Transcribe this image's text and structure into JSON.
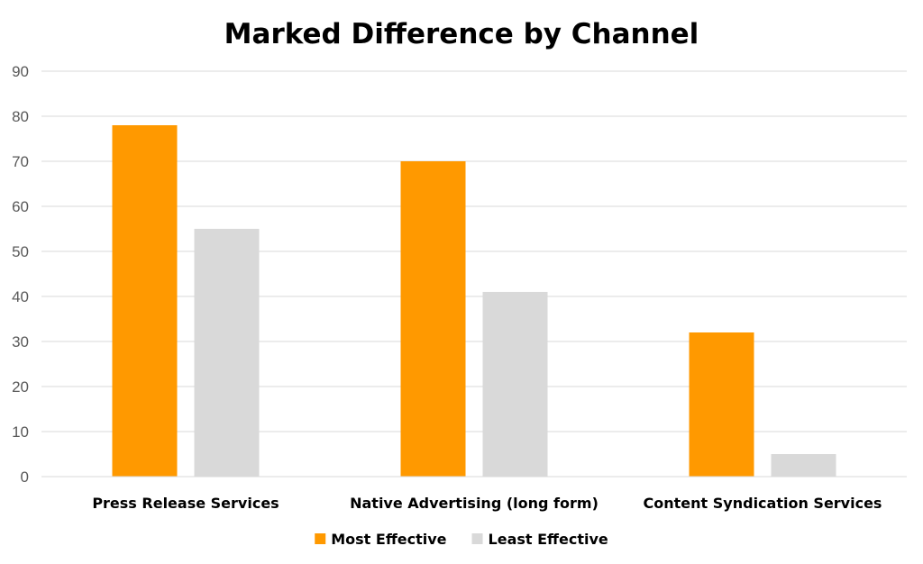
{
  "chart_data": {
    "type": "bar",
    "title": "Marked Difference by Channel",
    "xlabel": "",
    "ylabel": "",
    "ylim": [
      0,
      90
    ],
    "yticks": [
      0,
      10,
      20,
      30,
      40,
      50,
      60,
      70,
      80,
      90
    ],
    "grid": true,
    "legend_position": "bottom",
    "categories": [
      "Press Release Services",
      "Native Advertising (long form)",
      "Content Syndication Services"
    ],
    "series": [
      {
        "name": "Most Effective",
        "color": "#FF9900",
        "values": [
          78,
          70,
          32
        ]
      },
      {
        "name": "Least Effective",
        "color": "#D9D9D9",
        "values": [
          55,
          41,
          5
        ]
      }
    ]
  }
}
